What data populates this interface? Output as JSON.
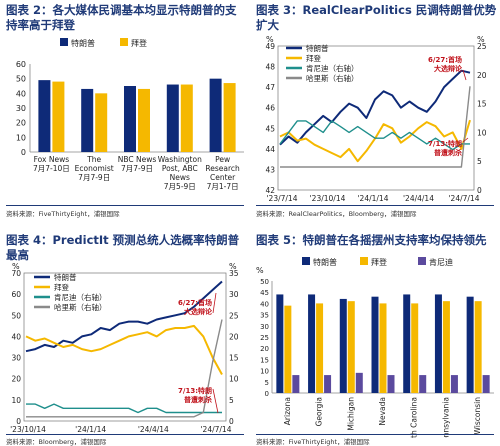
{
  "colors": {
    "trump": "#0e2a78",
    "biden": "#f5b800",
    "rfk": "#1f8f8c",
    "harris": "#8a8a8a",
    "title": "#1f3a78",
    "note": "#c0111a",
    "nikki": "#5b4a9e"
  },
  "chart_data": [
    {
      "type": "bar",
      "title": "图表 2：各大媒体民调基本均显示特朗普的支持率高于拜登",
      "source": "资料来源：FiveThirtyEight，浦银国际",
      "legend": [
        "特朗普",
        "拜登"
      ],
      "categories": [
        {
          "lines": [
            "Fox News",
            "7月7-10日"
          ]
        },
        {
          "lines": [
            "The",
            "Economist",
            "7月7-9日"
          ]
        },
        {
          "lines": [
            "NBC News",
            "7月7-9日"
          ]
        },
        {
          "lines": [
            "Washington",
            "Post, ABC",
            "News",
            "7月5-9日"
          ]
        },
        {
          "lines": [
            "Pew",
            "Research",
            "Center",
            "7月1-7日"
          ]
        }
      ],
      "series": [
        {
          "name": "特朗普",
          "values": [
            49,
            43,
            45,
            46,
            50
          ]
        },
        {
          "name": "拜登",
          "values": [
            48,
            40,
            43,
            46,
            47
          ]
        }
      ],
      "yticks": [
        "0",
        "10",
        "20",
        "30",
        "40",
        "50",
        "60"
      ],
      "ylim": [
        0,
        60
      ]
    },
    {
      "type": "line",
      "title": "图表 3：RealClearPolitics 民调特朗普优势扩大",
      "source": "资料来源：RealClearPolitics，Bloomberg，浦银国际",
      "ylabel_left": "%",
      "ylabel_right": "%",
      "legend": [
        "特朗普",
        "拜登",
        "肯尼迪（右轴）",
        "哈里斯（右轴）"
      ],
      "yticks_left": [
        "42",
        "43",
        "44",
        "45",
        "46",
        "47",
        "48",
        "49"
      ],
      "yticks_right": [
        "0",
        "5",
        "10",
        "15",
        "20",
        "25"
      ],
      "xticks": [
        "'23/7/14",
        "'23/10/14",
        "'24/1/14",
        "'24/4/14",
        "'24/7/14"
      ],
      "annotations": [
        {
          "lines": [
            "6/27:首场",
            "大选辩论"
          ]
        },
        {
          "lines": [
            "7/13:特朗",
            "普遭刺杀"
          ]
        }
      ],
      "ylim_left": [
        42,
        49
      ],
      "ylim_right": [
        0,
        25
      ],
      "series": [
        {
          "name": "特朗普",
          "axis": "left",
          "values": [
            44.2,
            44.6,
            44.3,
            44.8,
            45.2,
            45.6,
            45.3,
            45.8,
            46.2,
            46.0,
            45.5,
            46.4,
            46.8,
            46.6,
            46.0,
            46.3,
            46.0,
            45.8,
            46.3,
            47.0,
            47.4,
            47.8,
            47.7
          ]
        },
        {
          "name": "拜登",
          "axis": "left",
          "values": [
            44.6,
            44.8,
            44.4,
            44.5,
            44.2,
            44.0,
            43.8,
            43.6,
            44.0,
            43.4,
            43.9,
            44.5,
            45.2,
            45.0,
            44.3,
            44.6,
            45.0,
            45.3,
            45.1,
            44.6,
            44.8,
            44.0,
            45.4
          ]
        },
        {
          "name": "肯尼迪（右轴）",
          "axis": "right",
          "values": [
            8,
            10,
            12,
            12,
            11,
            10,
            12,
            11,
            10,
            11,
            10,
            9,
            9,
            10,
            9,
            10,
            9,
            8,
            9,
            8,
            7,
            8,
            8
          ]
        },
        {
          "name": "哈里斯（右轴）",
          "axis": "right",
          "values": [
            4,
            4,
            4,
            4,
            4,
            4,
            4,
            4,
            4,
            4,
            4,
            4,
            4,
            4,
            4,
            4,
            4,
            4,
            4,
            4,
            4,
            4,
            18
          ]
        }
      ]
    },
    {
      "type": "line",
      "title": "图表 4：PredictIt 预测总统人选概率特朗普最高",
      "source": "资料来源：Bloomberg，浦银国际",
      "ylabel_left": "%",
      "ylabel_right": "%",
      "legend": [
        "特朗普",
        "拜登",
        "肯尼迪（右轴）",
        "哈里斯（右轴）"
      ],
      "yticks_left": [
        "0",
        "10",
        "20",
        "30",
        "40",
        "50",
        "60",
        "70"
      ],
      "yticks_right": [
        "0",
        "5",
        "10",
        "15",
        "20",
        "25",
        "30",
        "35"
      ],
      "xticks": [
        "'23/10/14",
        "'24/1/14",
        "'24/4/14",
        "'24/7/14"
      ],
      "annotations": [
        {
          "lines": [
            "6/27:首场",
            "大选辩论"
          ]
        },
        {
          "lines": [
            "7/13:特朗",
            "普遭刺杀"
          ]
        }
      ],
      "ylim_left": [
        0,
        70
      ],
      "ylim_right": [
        0,
        35
      ],
      "series": [
        {
          "name": "特朗普",
          "axis": "left",
          "values": [
            33,
            34,
            36,
            35,
            38,
            37,
            40,
            41,
            44,
            43,
            46,
            47,
            47,
            46,
            48,
            49,
            50,
            51,
            54,
            58,
            62,
            66
          ]
        },
        {
          "name": "拜登",
          "axis": "left",
          "values": [
            40,
            38,
            39,
            37,
            35,
            36,
            34,
            33,
            34,
            36,
            38,
            40,
            41,
            42,
            40,
            43,
            44,
            44,
            45,
            40,
            30,
            22
          ]
        },
        {
          "name": "肯尼迪（右轴）",
          "axis": "right",
          "values": [
            4,
            4,
            3,
            4,
            3,
            3,
            3,
            3,
            3,
            3,
            3,
            3,
            2,
            3,
            3,
            2,
            2,
            2,
            2,
            2,
            2,
            2
          ]
        },
        {
          "name": "哈里斯（右轴）",
          "axis": "right",
          "values": [
            1,
            1,
            1,
            1,
            1,
            1,
            1,
            1,
            1,
            1,
            1,
            1,
            1,
            1,
            1,
            1,
            1,
            1,
            1,
            2,
            14,
            24
          ]
        }
      ]
    },
    {
      "type": "bar",
      "title": "图表 5：特朗普在各摇摆州支持率均保持领先",
      "source": "资料来源：FiveThirtyEight，浦银国际",
      "ylabel": "%",
      "legend": [
        "特朗普",
        "拜登",
        "肯尼迪"
      ],
      "categories": [
        "Arizona",
        "Georgia",
        "Michigan",
        "Nevada",
        "North Carolina",
        "Pennsylvania",
        "Wisconsin"
      ],
      "series": [
        {
          "name": "特朗普",
          "values": [
            44,
            44,
            42,
            43,
            44,
            44,
            43
          ]
        },
        {
          "name": "拜登",
          "values": [
            39,
            40,
            41,
            40,
            40,
            41,
            41
          ]
        },
        {
          "name": "肯尼迪",
          "values": [
            8,
            8,
            9,
            8,
            8,
            8,
            8
          ]
        }
      ],
      "yticks": [
        "0",
        "5",
        "10",
        "15",
        "20",
        "25",
        "30",
        "35",
        "40",
        "45",
        "50"
      ],
      "ylim": [
        0,
        50
      ]
    }
  ]
}
